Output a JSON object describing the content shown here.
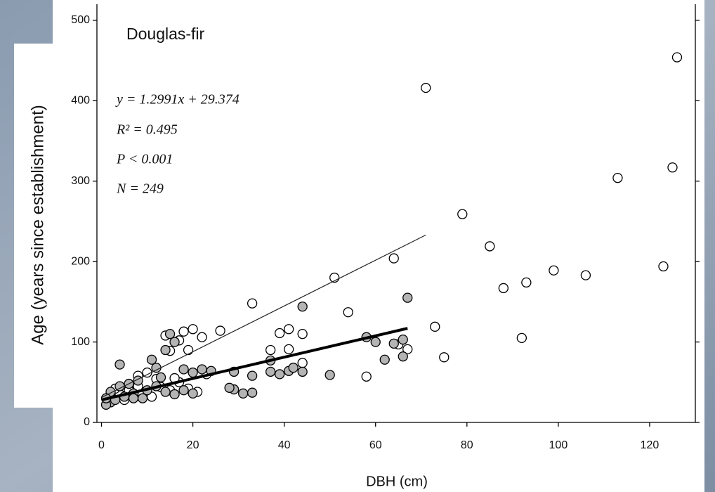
{
  "chart_data": {
    "type": "scatter",
    "title": "Douglas-fir",
    "x_label": "DBH (cm)",
    "y_label": "Age (years since establishment)",
    "annotations": [
      "y = 1.2991x + 29.374",
      "R² = 0.495",
      "P < 0.001",
      "N = 249"
    ],
    "xlim": [
      -1,
      130
    ],
    "ylim": [
      0,
      520
    ],
    "xticks": [
      0,
      20,
      40,
      60,
      80,
      100,
      120
    ],
    "yticks": [
      0,
      100,
      200,
      300,
      400,
      500
    ],
    "series": [
      {
        "color": "#ffffff",
        "x": [
          71,
          126,
          125,
          113,
          79,
          85,
          99,
          106,
          93,
          88,
          123,
          92,
          75,
          73,
          64,
          51,
          54,
          33,
          26,
          67,
          65,
          58,
          44,
          37,
          39,
          41,
          41,
          44,
          20,
          22,
          18,
          17,
          19,
          15,
          14,
          10,
          12,
          8,
          6,
          4,
          2,
          5,
          9,
          11,
          13,
          15,
          17,
          19,
          21,
          23,
          16,
          8,
          3
        ],
        "values": [
          416,
          454,
          317,
          304,
          259,
          219,
          189,
          183,
          174,
          167,
          194,
          105,
          81,
          119,
          204,
          180,
          137,
          148,
          114,
          91,
          97,
          57,
          74,
          90,
          111,
          116,
          91,
          110,
          116,
          106,
          113,
          102,
          90,
          89,
          108,
          62,
          54,
          45,
          40,
          35,
          30,
          28,
          35,
          32,
          44,
          40,
          50,
          42,
          38,
          60,
          55,
          58,
          42
        ]
      },
      {
        "color": "#b4b4b4",
        "x": [
          67,
          44,
          15,
          4,
          11,
          12,
          14,
          16,
          18,
          20,
          22,
          24,
          37,
          37,
          39,
          41,
          42,
          44,
          50,
          29,
          29,
          31,
          33,
          28,
          33,
          60,
          62,
          64,
          66,
          66,
          58,
          2,
          1,
          3,
          5,
          7,
          9,
          6,
          8,
          10,
          12,
          14,
          13,
          16,
          18,
          20,
          2,
          4,
          7,
          1
        ],
        "values": [
          155,
          144,
          110,
          72,
          78,
          68,
          90,
          100,
          66,
          62,
          66,
          64,
          77,
          63,
          60,
          64,
          68,
          63,
          59,
          63,
          41,
          36,
          58,
          43,
          37,
          100,
          78,
          98,
          103,
          82,
          106,
          25,
          22,
          28,
          32,
          36,
          30,
          48,
          52,
          40,
          45,
          38,
          56,
          35,
          40,
          36,
          38,
          45,
          30,
          30
        ]
      }
    ],
    "fit_lines": [
      {
        "color": "#222222",
        "width": 1.2,
        "x": [
          0,
          71
        ],
        "values": [
          31,
          233
        ]
      },
      {
        "color": "#000000",
        "width": 4,
        "x": [
          0,
          67
        ],
        "values": [
          28,
          117
        ]
      }
    ]
  }
}
